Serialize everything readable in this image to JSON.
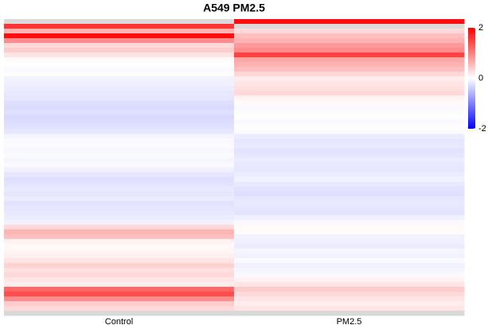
{
  "chart_data": {
    "type": "heatmap",
    "title": "A549 PM2.5",
    "series": [
      {
        "name": "Control",
        "values": [
          null,
          1.6,
          0.6,
          1.9,
          0.9,
          0.3,
          0.4,
          0.2,
          0.05,
          0.0,
          -0.05,
          0.02,
          -0.1,
          -0.12,
          -0.15,
          -0.18,
          -0.2,
          -0.25,
          -0.28,
          -0.25,
          -0.3,
          -0.27,
          -0.24,
          -0.2,
          -0.08,
          -0.05,
          -0.03,
          -0.06,
          -0.04,
          -0.08,
          -0.05,
          -0.1,
          -0.2,
          -0.25,
          -0.22,
          -0.18,
          -0.2,
          -0.15,
          -0.22,
          -0.2,
          -0.18,
          -0.15,
          -0.1,
          0.3,
          0.6,
          0.5,
          0.1,
          0.05,
          0.08,
          0.12,
          0.2,
          0.35,
          0.25,
          0.3,
          0.2,
          0.15,
          1.2,
          1.4,
          0.9,
          0.4,
          0.3,
          null
        ]
      },
      {
        "name": "PM2.5",
        "values": [
          1.9,
          null,
          0.3,
          0.5,
          0.6,
          0.8,
          0.9,
          1.5,
          0.7,
          0.6,
          0.5,
          0.3,
          0.15,
          0.2,
          0.25,
          0.3,
          0.1,
          0.05,
          -0.05,
          -0.02,
          0.0,
          -0.05,
          0.02,
          -0.03,
          -0.15,
          -0.2,
          -0.18,
          -0.22,
          -0.2,
          -0.15,
          -0.18,
          -0.2,
          -0.15,
          -0.1,
          -0.18,
          -0.22,
          -0.25,
          -0.2,
          -0.18,
          -0.2,
          -0.22,
          -0.12,
          -0.05,
          0.05,
          0.02,
          -0.1,
          -0.12,
          -0.15,
          -0.08,
          -0.1,
          -0.05,
          -0.12,
          -0.08,
          -0.05,
          0.1,
          0.2,
          0.4,
          0.3,
          0.2,
          0.15,
          0.2,
          null
        ]
      }
    ],
    "colors": [
      "#0000ff",
      "#ffffff",
      "#ff0000"
    ],
    "na_color": "#d9d9d9",
    "clim": [
      -2,
      2
    ],
    "cticks": [
      2,
      0,
      -2
    ]
  }
}
